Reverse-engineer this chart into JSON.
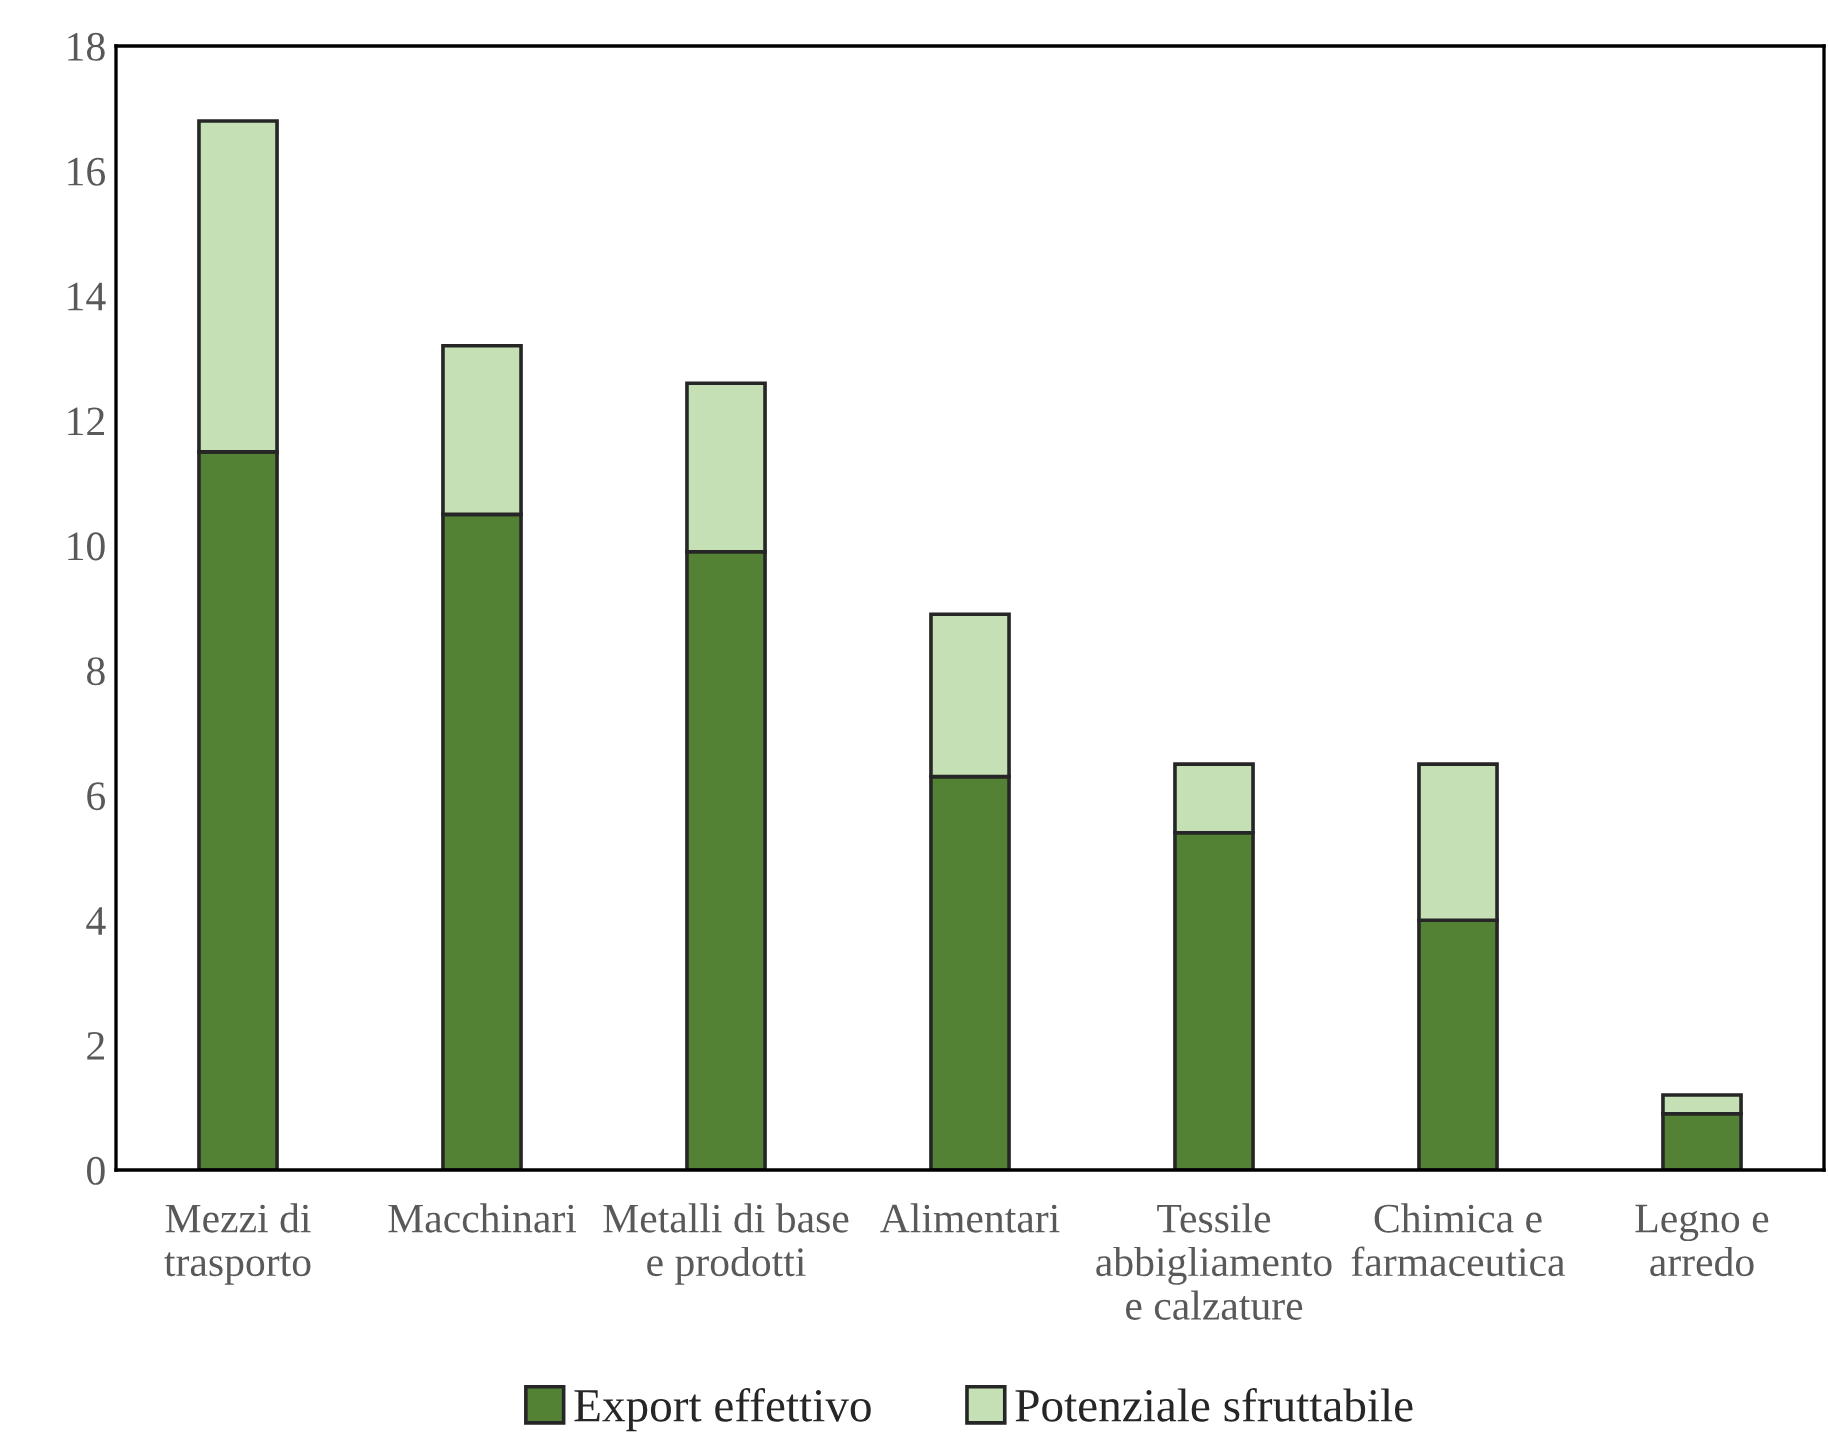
{
  "chart_data": {
    "type": "bar",
    "stacked": true,
    "categories": [
      "Mezzi di\ntrasporto",
      "Macchinari",
      "Metalli di base\ne prodotti",
      "Alimentari",
      "Tessile\nabbigliamento\ne calzature",
      "Chimica e\nfarmaceutica",
      "Legno e\narredo"
    ],
    "series": [
      {
        "name": "Export effettivo",
        "color": "#548235",
        "values": [
          11.5,
          10.5,
          9.9,
          6.3,
          5.4,
          4.0,
          0.9
        ]
      },
      {
        "name": "Potenziale sfruttabile",
        "color": "#c5e0b4",
        "values": [
          5.3,
          2.7,
          2.7,
          2.6,
          1.1,
          2.5,
          0.3
        ]
      }
    ],
    "ylim": [
      0,
      18
    ],
    "yticks": [
      0,
      2,
      4,
      6,
      8,
      10,
      12,
      14,
      16,
      18
    ],
    "grid": false,
    "legend": "bottom"
  }
}
